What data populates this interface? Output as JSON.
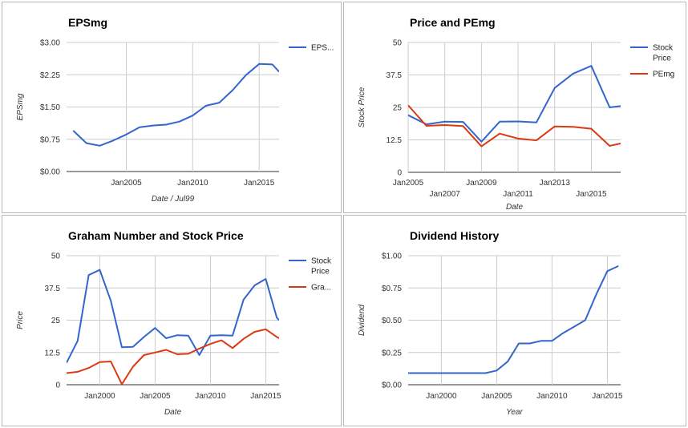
{
  "chart_data": [
    {
      "type": "line",
      "title": "EPSmg",
      "xlabel": "Date / Jul99",
      "ylabel": "EPSmg",
      "x": [
        2001,
        2002,
        2003,
        2004,
        2005,
        2006,
        2007,
        2008,
        2009,
        2010,
        2011,
        2012,
        2013,
        2014,
        2015,
        2016,
        2016.5
      ],
      "series": [
        {
          "name": "EPS...",
          "color": "#3366cc",
          "values": [
            0.95,
            0.66,
            0.6,
            0.72,
            0.86,
            1.03,
            1.07,
            1.09,
            1.16,
            1.3,
            1.53,
            1.6,
            1.89,
            2.24,
            2.5,
            2.49,
            2.32
          ]
        }
      ],
      "xticks": [
        {
          "v": 2005,
          "label": "Jan2005"
        },
        {
          "v": 2010,
          "label": "Jan2010"
        },
        {
          "v": 2015,
          "label": "Jan2015"
        }
      ],
      "yticks": [
        "$0.00",
        "$0.75",
        "$1.50",
        "$2.25",
        "$3.00"
      ],
      "ylim": [
        0,
        3
      ],
      "xlim": [
        2000.5,
        2016.5
      ],
      "legend": "right",
      "grid": true
    },
    {
      "type": "line",
      "title": "Price and PEmg",
      "xlabel": "Date",
      "ylabel": "Stock Price",
      "x": [
        2005,
        2006,
        2007,
        2008,
        2009,
        2010,
        2011,
        2012,
        2013,
        2014,
        2015,
        2016,
        2016.6
      ],
      "series": [
        {
          "name": "Stock Price",
          "color": "#3366cc",
          "values": [
            22.0,
            18.5,
            19.5,
            19.4,
            11.8,
            19.5,
            19.6,
            19.2,
            32.5,
            38.0,
            41.0,
            25.0,
            25.5
          ]
        },
        {
          "name": "PEmg",
          "color": "#dc3912",
          "values": [
            25.8,
            17.9,
            18.2,
            17.8,
            10.0,
            14.9,
            13.0,
            12.3,
            17.7,
            17.5,
            16.8,
            10.2,
            11.1
          ]
        }
      ],
      "xticks": [
        {
          "v": 2005,
          "label": "Jan2005",
          "row": 0
        },
        {
          "v": 2007,
          "label": "Jan2007",
          "row": 1
        },
        {
          "v": 2009,
          "label": "Jan2009",
          "row": 0
        },
        {
          "v": 2011,
          "label": "Jan2011",
          "row": 1
        },
        {
          "v": 2013,
          "label": "Jan2013",
          "row": 0
        },
        {
          "v": 2015,
          "label": "Jan2015",
          "row": 1
        }
      ],
      "yticks": [
        "0",
        "12.5",
        "25",
        "37.5",
        "50"
      ],
      "ylim": [
        0,
        50
      ],
      "xlim": [
        2005,
        2016.6
      ],
      "legend": "right",
      "grid": true
    },
    {
      "type": "line",
      "title": "Graham Number and Stock Price",
      "xlabel": "Date",
      "ylabel": "Price",
      "x": [
        1997,
        1998,
        1999,
        2000,
        2001,
        2002,
        2003,
        2004,
        2005,
        2006,
        2007,
        2008,
        2009,
        2010,
        2011,
        2012,
        2013,
        2014,
        2015,
        2016,
        2016.2
      ],
      "series": [
        {
          "name": "Stock Price",
          "color": "#3366cc",
          "values": [
            8.5,
            17.0,
            42.5,
            44.5,
            32.5,
            14.5,
            14.7,
            18.5,
            22.0,
            18.0,
            19.2,
            19.0,
            11.5,
            19.0,
            19.2,
            19.0,
            33.0,
            38.5,
            41.0,
            26.0,
            25.0
          ]
        },
        {
          "name": "Gra...",
          "color": "#dc3912",
          "values": [
            4.5,
            5.0,
            6.5,
            8.8,
            9.0,
            0.2,
            7.0,
            11.5,
            12.5,
            13.5,
            11.8,
            12.0,
            14.0,
            15.8,
            17.2,
            14.2,
            17.8,
            20.5,
            21.5,
            18.5,
            18.0
          ]
        }
      ],
      "xticks": [
        {
          "v": 2000,
          "label": "Jan2000"
        },
        {
          "v": 2005,
          "label": "Jan2005"
        },
        {
          "v": 2010,
          "label": "Jan2010"
        },
        {
          "v": 2015,
          "label": "Jan2015"
        }
      ],
      "yticks": [
        "0",
        "12.5",
        "25",
        "37.5",
        "50"
      ],
      "ylim": [
        0,
        50
      ],
      "xlim": [
        1997,
        2016.2
      ],
      "legend": "right",
      "grid": true
    },
    {
      "type": "line",
      "title": "Dividend History",
      "xlabel": "Year",
      "ylabel": "Dividend",
      "x": [
        1997,
        1998,
        1999,
        2000,
        2001,
        2002,
        2003,
        2004,
        2005,
        2006,
        2007,
        2008,
        2009,
        2010,
        2011,
        2012,
        2013,
        2014,
        2015,
        2016
      ],
      "series": [
        {
          "name": "Dividend",
          "color": "#3366cc",
          "values": [
            0.09,
            0.09,
            0.09,
            0.09,
            0.09,
            0.09,
            0.09,
            0.09,
            0.11,
            0.18,
            0.32,
            0.32,
            0.34,
            0.34,
            0.4,
            0.45,
            0.5,
            0.7,
            0.88,
            0.92
          ]
        }
      ],
      "xticks": [
        {
          "v": 2000,
          "label": "Jan2000"
        },
        {
          "v": 2005,
          "label": "Jan2005"
        },
        {
          "v": 2010,
          "label": "Jan2010"
        },
        {
          "v": 2015,
          "label": "Jan2015"
        }
      ],
      "yticks": [
        "$0.00",
        "$0.25",
        "$0.50",
        "$0.75",
        "$1.00"
      ],
      "ylim": [
        0,
        1
      ],
      "xlim": [
        1997,
        2016.2
      ],
      "legend": "none",
      "grid": true
    }
  ]
}
